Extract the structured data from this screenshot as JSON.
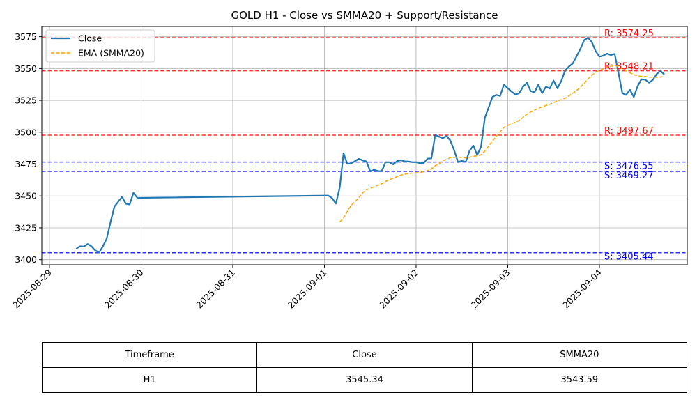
{
  "chart_data": {
    "type": "line",
    "title": "GOLD H1 - Close vs SMMA20 + Support/Resistance",
    "ylim": [
      3396,
      3583
    ],
    "yticks": [
      3400,
      3425,
      3450,
      3475,
      3500,
      3525,
      3550,
      3575
    ],
    "xlim": [
      "2025-08-28 22:00",
      "2025-09-04 23:00"
    ],
    "xticks": [
      "2025-08-29",
      "2025-08-30",
      "2025-08-31",
      "2025-09-01",
      "2025-09-02",
      "2025-09-03",
      "2025-09-04"
    ],
    "grid": true,
    "legend": "top-left",
    "series": [
      {
        "name": "Close",
        "color": "#1f77b4",
        "points": [
          [
            "2025-08-29 07:00",
            3408.5
          ],
          [
            "2025-08-29 08:00",
            3410.5
          ],
          [
            "2025-08-29 09:00",
            3410.3
          ],
          [
            "2025-08-29 10:00",
            3412.3
          ],
          [
            "2025-08-29 11:00",
            3410.5
          ],
          [
            "2025-08-29 12:00",
            3407.2
          ],
          [
            "2025-08-29 13:00",
            3405.6
          ],
          [
            "2025-08-29 14:00",
            3410.5
          ],
          [
            "2025-08-29 15:00",
            3416.5
          ],
          [
            "2025-08-29 16:00",
            3429.5
          ],
          [
            "2025-08-29 17:00",
            3441.5
          ],
          [
            "2025-08-29 18:00",
            3445.5
          ],
          [
            "2025-08-29 19:00",
            3449.3
          ],
          [
            "2025-08-29 20:00",
            3443.9
          ],
          [
            "2025-08-29 21:00",
            3443.3
          ],
          [
            "2025-08-29 22:00",
            3452.5
          ],
          [
            "2025-08-29 23:00",
            3448.5
          ],
          [
            "2025-09-01 01:00",
            3450.3
          ],
          [
            "2025-09-01 02:00",
            3448.3
          ],
          [
            "2025-09-01 03:00",
            3444.0
          ],
          [
            "2025-09-01 04:00",
            3456.5
          ],
          [
            "2025-09-01 05:00",
            3483.5
          ],
          [
            "2025-09-01 06:00",
            3475.3
          ],
          [
            "2025-09-01 07:00",
            3475.5
          ],
          [
            "2025-09-01 08:00",
            3477.3
          ],
          [
            "2025-09-01 09:00",
            3479.1
          ],
          [
            "2025-09-01 10:00",
            3477.9
          ],
          [
            "2025-09-01 11:00",
            3477.1
          ],
          [
            "2025-09-01 12:00",
            3469.4
          ],
          [
            "2025-09-01 13:00",
            3470.5
          ],
          [
            "2025-09-01 14:00",
            3469.5
          ],
          [
            "2025-09-01 15:00",
            3469.5
          ],
          [
            "2025-09-01 16:00",
            3476.5
          ],
          [
            "2025-09-01 17:00",
            3476.5
          ],
          [
            "2025-09-01 18:00",
            3474.8
          ],
          [
            "2025-09-01 19:00",
            3477.3
          ],
          [
            "2025-09-01 20:00",
            3478.1
          ],
          [
            "2025-09-01 21:00",
            3477.1
          ],
          [
            "2025-09-01 22:00",
            3477.1
          ],
          [
            "2025-09-01 23:00",
            3476.5
          ],
          [
            "2025-09-02 00:00",
            3476.5
          ],
          [
            "2025-09-02 01:00",
            3475.7
          ],
          [
            "2025-09-02 02:00",
            3475.9
          ],
          [
            "2025-09-02 03:00",
            3479.3
          ],
          [
            "2025-09-02 04:00",
            3479.5
          ],
          [
            "2025-09-02 05:00",
            3497.9
          ],
          [
            "2025-09-02 06:00",
            3496.5
          ],
          [
            "2025-09-02 07:00",
            3495.3
          ],
          [
            "2025-09-02 08:00",
            3497.1
          ],
          [
            "2025-09-02 09:00",
            3493.3
          ],
          [
            "2025-09-02 10:00",
            3485.5
          ],
          [
            "2025-09-02 11:00",
            3476.5
          ],
          [
            "2025-09-02 12:00",
            3477.5
          ],
          [
            "2025-09-02 13:00",
            3476.7
          ],
          [
            "2025-09-02 14:00",
            3485.5
          ],
          [
            "2025-09-02 15:00",
            3489.5
          ],
          [
            "2025-09-02 16:00",
            3482.1
          ],
          [
            "2025-09-02 17:00",
            3488.5
          ],
          [
            "2025-09-02 18:00",
            3511.3
          ],
          [
            "2025-09-02 19:00",
            3519.5
          ],
          [
            "2025-09-02 20:00",
            3527.7
          ],
          [
            "2025-09-02 21:00",
            3529.3
          ],
          [
            "2025-09-02 22:00",
            3528.5
          ],
          [
            "2025-09-02 23:00",
            3537.3
          ],
          [
            "2025-09-03 00:00",
            3534.5
          ],
          [
            "2025-09-03 01:00",
            3531.9
          ],
          [
            "2025-09-03 02:00",
            3529.5
          ],
          [
            "2025-09-03 03:00",
            3530.7
          ],
          [
            "2025-09-03 04:00",
            3535.7
          ],
          [
            "2025-09-03 05:00",
            3538.9
          ],
          [
            "2025-09-03 06:00",
            3532.3
          ],
          [
            "2025-09-03 07:00",
            3531.3
          ],
          [
            "2025-09-03 08:00",
            3537.3
          ],
          [
            "2025-09-03 09:00",
            3530.7
          ],
          [
            "2025-09-03 10:00",
            3535.7
          ],
          [
            "2025-09-03 11:00",
            3534.3
          ],
          [
            "2025-09-03 12:00",
            3540.5
          ],
          [
            "2025-09-03 13:00",
            3534.5
          ],
          [
            "2025-09-03 14:00",
            3540.1
          ],
          [
            "2025-09-03 15:00",
            3548.3
          ],
          [
            "2025-09-03 16:00",
            3551.5
          ],
          [
            "2025-09-03 17:00",
            3553.9
          ],
          [
            "2025-09-03 18:00",
            3559.5
          ],
          [
            "2025-09-03 19:00",
            3565.3
          ],
          [
            "2025-09-03 20:00",
            3572.3
          ],
          [
            "2025-09-03 21:00",
            3574.1
          ],
          [
            "2025-09-03 22:00",
            3570.9
          ],
          [
            "2025-09-03 23:00",
            3563.7
          ],
          [
            "2025-09-04 00:00",
            3559.3
          ],
          [
            "2025-09-04 01:00",
            3560.1
          ],
          [
            "2025-09-04 02:00",
            3561.7
          ],
          [
            "2025-09-04 03:00",
            3560.5
          ],
          [
            "2025-09-04 04:00",
            3561.5
          ],
          [
            "2025-09-04 05:00",
            3546.5
          ],
          [
            "2025-09-04 06:00",
            3530.7
          ],
          [
            "2025-09-04 07:00",
            3529.3
          ],
          [
            "2025-09-04 08:00",
            3533.3
          ],
          [
            "2025-09-04 09:00",
            3527.7
          ],
          [
            "2025-09-04 10:00",
            3536.1
          ],
          [
            "2025-09-04 11:00",
            3541.5
          ],
          [
            "2025-09-04 12:00",
            3541.3
          ],
          [
            "2025-09-04 13:00",
            3538.9
          ],
          [
            "2025-09-04 14:00",
            3541.1
          ],
          [
            "2025-09-04 15:00",
            3545.7
          ],
          [
            "2025-09-04 16:00",
            3548.1
          ],
          [
            "2025-09-04 17:00",
            3545.3
          ]
        ]
      },
      {
        "name": "EMA (SMMA20)",
        "color": "#ffa500",
        "dashed": true,
        "points": [
          [
            "2025-09-01 04:00",
            3429.5
          ],
          [
            "2025-09-01 05:00",
            3432.5
          ],
          [
            "2025-09-01 06:00",
            3438.0
          ],
          [
            "2025-09-01 07:00",
            3442.5
          ],
          [
            "2025-09-01 08:00",
            3445.5
          ],
          [
            "2025-09-01 09:00",
            3448.5
          ],
          [
            "2025-09-01 10:00",
            3452.5
          ],
          [
            "2025-09-01 11:00",
            3454.7
          ],
          [
            "2025-09-01 12:00",
            3455.9
          ],
          [
            "2025-09-01 13:00",
            3457.3
          ],
          [
            "2025-09-01 14:00",
            3458.5
          ],
          [
            "2025-09-01 15:00",
            3459.5
          ],
          [
            "2025-09-01 16:00",
            3461.3
          ],
          [
            "2025-09-01 17:00",
            3462.7
          ],
          [
            "2025-09-01 18:00",
            3463.9
          ],
          [
            "2025-09-01 19:00",
            3465.1
          ],
          [
            "2025-09-01 20:00",
            3466.3
          ],
          [
            "2025-09-01 21:00",
            3467.1
          ],
          [
            "2025-09-01 22:00",
            3467.5
          ],
          [
            "2025-09-01 23:00",
            3467.9
          ],
          [
            "2025-09-02 00:00",
            3468.1
          ],
          [
            "2025-09-02 01:00",
            3468.3
          ],
          [
            "2025-09-02 02:00",
            3469.1
          ],
          [
            "2025-09-02 03:00",
            3469.9
          ],
          [
            "2025-09-02 04:00",
            3471.3
          ],
          [
            "2025-09-02 05:00",
            3473.7
          ],
          [
            "2025-09-02 06:00",
            3475.3
          ],
          [
            "2025-09-02 07:00",
            3477.5
          ],
          [
            "2025-09-02 08:00",
            3478.7
          ],
          [
            "2025-09-02 09:00",
            3480.1
          ],
          [
            "2025-09-02 10:00",
            3480.3
          ],
          [
            "2025-09-02 11:00",
            3480.5
          ],
          [
            "2025-09-02 12:00",
            3480.1
          ],
          [
            "2025-09-02 13:00",
            3479.9
          ],
          [
            "2025-09-02 14:00",
            3480.3
          ],
          [
            "2025-09-02 15:00",
            3481.1
          ],
          [
            "2025-09-02 16:00",
            3481.5
          ],
          [
            "2025-09-02 17:00",
            3482.1
          ],
          [
            "2025-09-02 18:00",
            3485.3
          ],
          [
            "2025-09-02 19:00",
            3489.1
          ],
          [
            "2025-09-02 20:00",
            3493.3
          ],
          [
            "2025-09-02 21:00",
            3496.7
          ],
          [
            "2025-09-02 22:00",
            3500.3
          ],
          [
            "2025-09-02 23:00",
            3503.7
          ],
          [
            "2025-09-03 00:00",
            3505.3
          ],
          [
            "2025-09-03 01:00",
            3506.9
          ],
          [
            "2025-09-03 02:00",
            3507.7
          ],
          [
            "2025-09-03 03:00",
            3509.3
          ],
          [
            "2025-09-03 04:00",
            3511.7
          ],
          [
            "2025-09-03 05:00",
            3514.1
          ],
          [
            "2025-09-03 06:00",
            3515.9
          ],
          [
            "2025-09-03 07:00",
            3517.3
          ],
          [
            "2025-09-03 08:00",
            3518.7
          ],
          [
            "2025-09-03 09:00",
            3519.9
          ],
          [
            "2025-09-03 10:00",
            3520.9
          ],
          [
            "2025-09-03 11:00",
            3521.9
          ],
          [
            "2025-09-03 12:00",
            3523.3
          ],
          [
            "2025-09-03 13:00",
            3524.5
          ],
          [
            "2025-09-03 14:00",
            3525.5
          ],
          [
            "2025-09-03 15:00",
            3526.7
          ],
          [
            "2025-09-03 16:00",
            3528.5
          ],
          [
            "2025-09-03 17:00",
            3530.5
          ],
          [
            "2025-09-03 18:00",
            3532.7
          ],
          [
            "2025-09-03 19:00",
            3535.3
          ],
          [
            "2025-09-03 20:00",
            3538.3
          ],
          [
            "2025-09-03 21:00",
            3541.7
          ],
          [
            "2025-09-03 22:00",
            3544.7
          ],
          [
            "2025-09-03 23:00",
            3547.1
          ],
          [
            "2025-09-04 00:00",
            3548.5
          ],
          [
            "2025-09-04 01:00",
            3549.7
          ],
          [
            "2025-09-04 02:00",
            3550.9
          ],
          [
            "2025-09-04 03:00",
            3551.7
          ],
          [
            "2025-09-04 04:00",
            3552.5
          ],
          [
            "2025-09-04 05:00",
            3551.5
          ],
          [
            "2025-09-04 06:00",
            3549.7
          ],
          [
            "2025-09-04 07:00",
            3548.1
          ],
          [
            "2025-09-04 08:00",
            3546.7
          ],
          [
            "2025-09-04 09:00",
            3545.1
          ],
          [
            "2025-09-04 10:00",
            3544.3
          ],
          [
            "2025-09-04 11:00",
            3543.9
          ],
          [
            "2025-09-04 12:00",
            3543.7
          ],
          [
            "2025-09-04 13:00",
            3543.3
          ],
          [
            "2025-09-04 14:00",
            3543.1
          ],
          [
            "2025-09-04 15:00",
            3543.1
          ],
          [
            "2025-09-04 16:00",
            3543.3
          ],
          [
            "2025-09-04 17:00",
            3543.59
          ]
        ]
      }
    ],
    "levels": [
      {
        "kind": "resistance",
        "value": 3574.25,
        "label": "R: 3574.25",
        "color": "#ff0000"
      },
      {
        "kind": "resistance",
        "value": 3548.21,
        "label": "R: 3548.21",
        "color": "#ff0000"
      },
      {
        "kind": "resistance",
        "value": 3497.67,
        "label": "R: 3497.67",
        "color": "#ff0000"
      },
      {
        "kind": "support",
        "value": 3476.55,
        "label": "S: 3476.55",
        "color": "#0000ff"
      },
      {
        "kind": "support",
        "value": 3469.27,
        "label": "S: 3469.27",
        "color": "#0000ff"
      },
      {
        "kind": "support",
        "value": 3405.44,
        "label": "S: 3405.44",
        "color": "#0000ff"
      }
    ]
  },
  "table": {
    "headers": [
      "Timeframe",
      "Close",
      "SMMA20"
    ],
    "rows": [
      [
        "H1",
        "3545.34",
        "3543.59"
      ]
    ]
  }
}
